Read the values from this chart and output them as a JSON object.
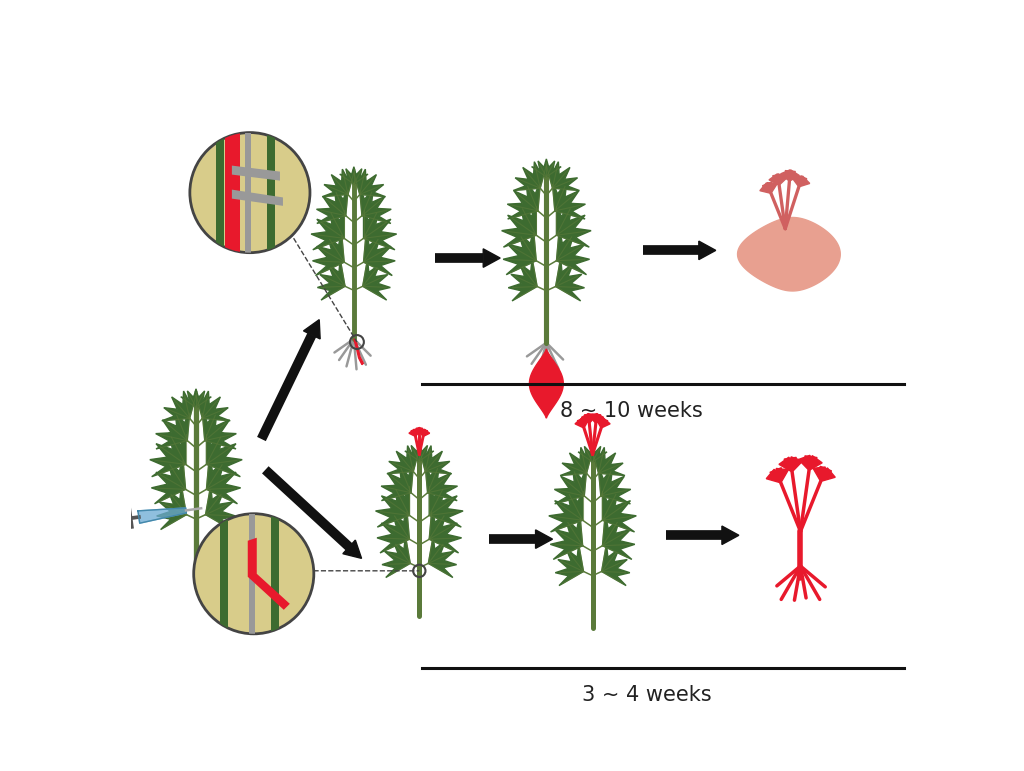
{
  "bg_color": "#ffffff",
  "text_8_10": "8 ~ 10 weeks",
  "text_3_4": "3 ~ 4 weeks",
  "text_fontsize": 15,
  "arrow_color": "#111111",
  "line_color": "#111111",
  "green_dark": "#3d6b30",
  "green_med": "#4a7a38",
  "green_light": "#5a9040",
  "red_bright": "#e8192c",
  "red_mid": "#c0392b",
  "red_light": "#e07070",
  "salmon": "#e8a090",
  "salmon_dark": "#d06060",
  "gray_root": "#999999",
  "stem_color": "#5a7a3a",
  "circle_line": "#444444",
  "beige": "#d8cc8a",
  "syringe_blue": "#6aaad4",
  "syringe_dark": "#4488aa"
}
